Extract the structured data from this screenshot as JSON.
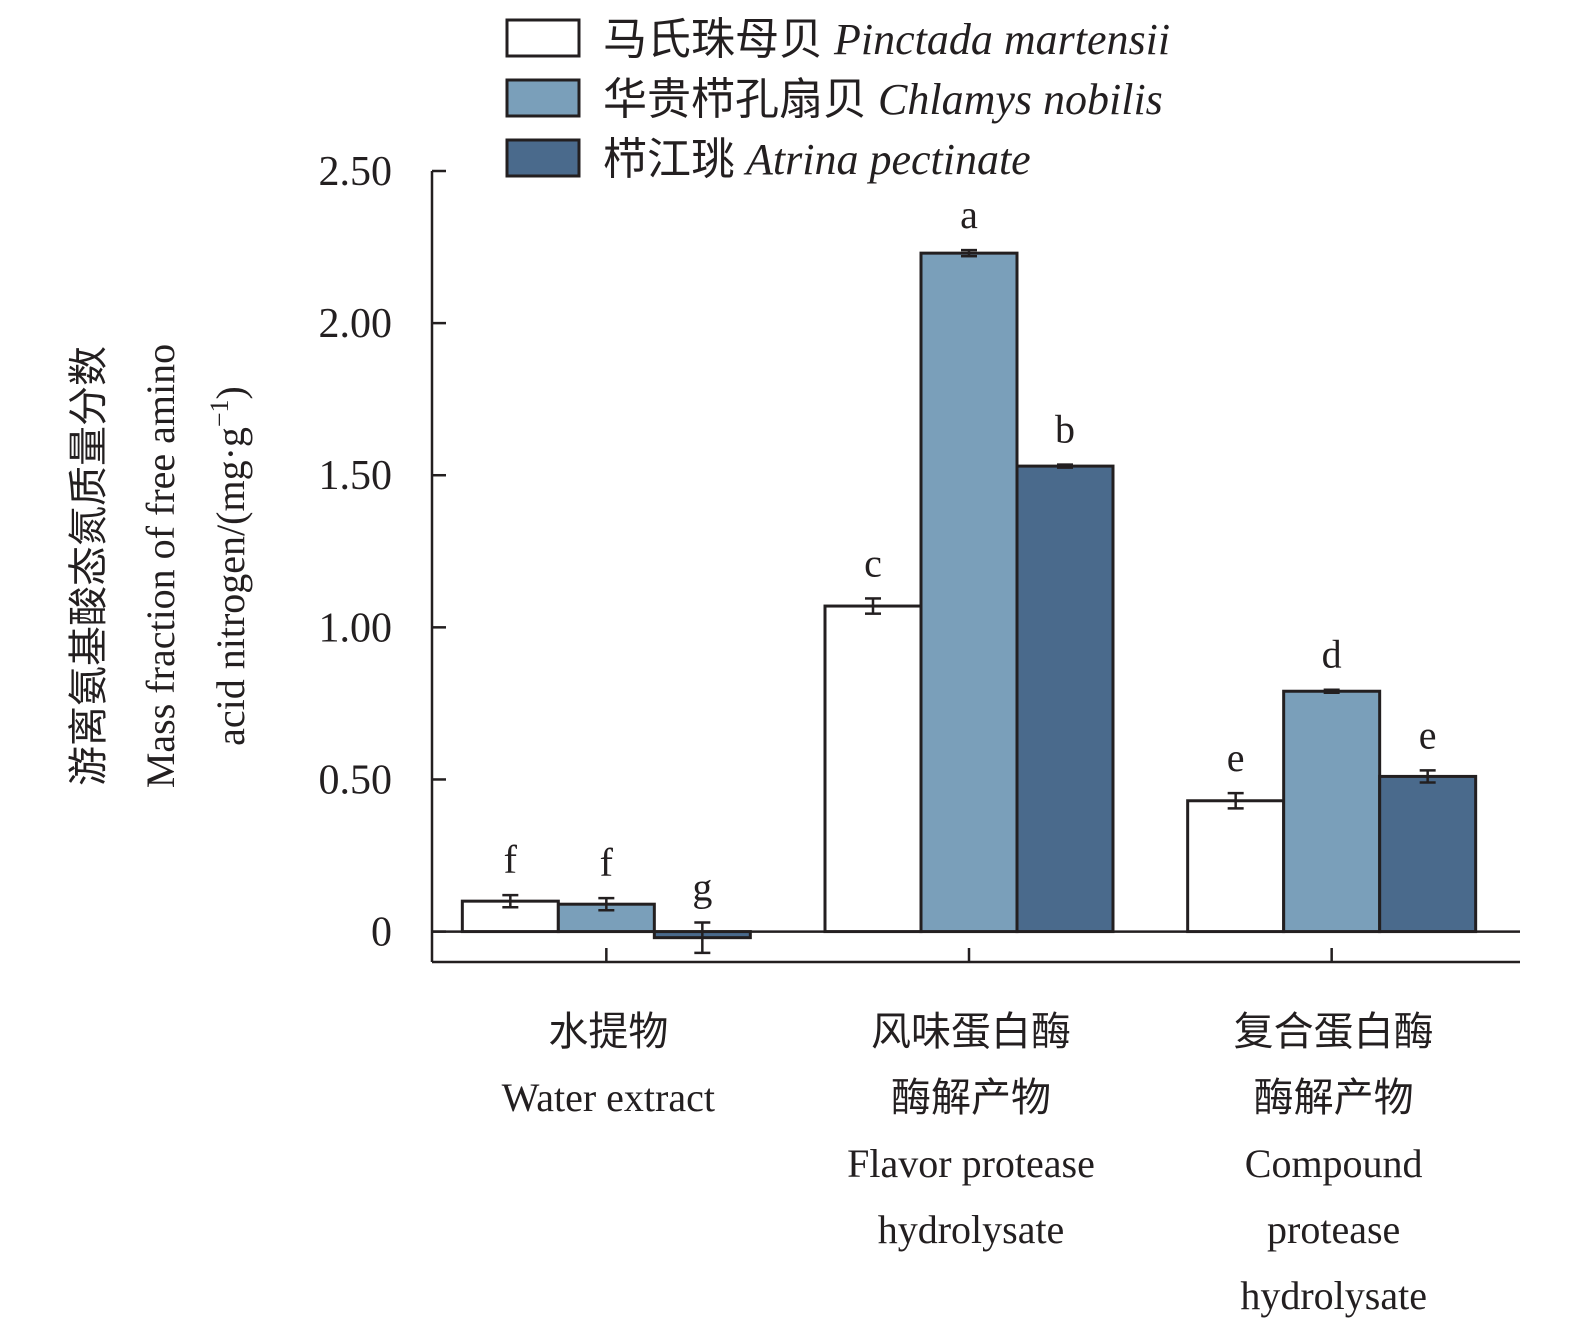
{
  "chart_data": {
    "type": "bar",
    "ylabel_lines": [
      "游离氨基酸态氮质量分数",
      "Mass fraction of free amino",
      "acid nitrogen/(mg·g",
      "−1",
      ")"
    ],
    "yticks": [
      "0",
      "0.50",
      "1.00",
      "1.50",
      "2.00",
      "2.50"
    ],
    "ylim": [
      -0.1,
      2.5
    ],
    "categories": [
      {
        "lines": [
          "水提物",
          "Water extract"
        ]
      },
      {
        "lines": [
          "风味蛋白酶",
          "酶解产物",
          "Flavor protease",
          "hydrolysate"
        ]
      },
      {
        "lines": [
          "复合蛋白酶",
          "酶解产物",
          "Compound",
          "protease",
          "hydrolysate"
        ]
      }
    ],
    "series": [
      {
        "name_cn": "马氏珠母贝",
        "name_latin": "Pinctada martensii",
        "color": "#ffffff",
        "values": [
          0.1,
          1.07,
          0.43
        ],
        "errors": [
          0.02,
          0.025,
          0.025
        ],
        "letters": [
          "f",
          "c",
          "e"
        ]
      },
      {
        "name_cn": "华贵栉孔扇贝",
        "name_latin": "Chlamys nobilis",
        "color": "#7a9fba",
        "values": [
          0.09,
          2.23,
          0.79
        ],
        "errors": [
          0.02,
          0.01,
          0.005
        ],
        "letters": [
          "f",
          "a",
          "d"
        ]
      },
      {
        "name_cn": "栉江珧",
        "name_latin": "Atrina pectinate",
        "color": "#4a6a8c",
        "values": [
          -0.02,
          1.53,
          0.51
        ],
        "errors": [
          0.05,
          0.005,
          0.02
        ],
        "letters": [
          "g",
          "b",
          "e"
        ]
      }
    ],
    "grid": false,
    "legend_position": "top"
  }
}
